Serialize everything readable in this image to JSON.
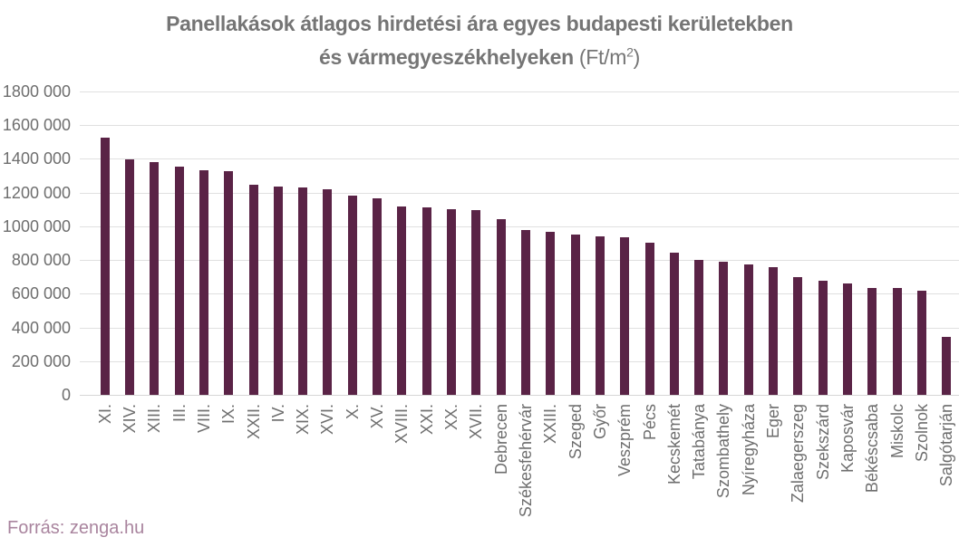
{
  "title": {
    "line1": "Panellakások átlagos hirdetési ára egyes budapesti kerületekben",
    "line2_bold": "és vármegyeszékhelyeken",
    "unit_prefix": " (Ft/m",
    "unit_sup": "2",
    "unit_suffix": ")"
  },
  "source": {
    "text": "Forrás: zenga.hu"
  },
  "colors": {
    "bar": "#5a2346",
    "gridline": "#e0e0e0",
    "zero_line": "#d6d6d6",
    "axis_label": "#6e6e6e",
    "title": "#757575",
    "source": "#a9849e",
    "background": "#ffffff"
  },
  "chart_data": {
    "type": "bar",
    "title": "Panellakások átlagos hirdetési ára egyes budapesti kerületekben és vármegyeszékhelyeken (Ft/m2)",
    "xlabel": "",
    "ylabel": "",
    "ylim": [
      0,
      1800000
    ],
    "grid": true,
    "legend": false,
    "bar_color": "#5a2346",
    "y_ticks": [
      {
        "value": 1800000,
        "label": "1800 000"
      },
      {
        "value": 1600000,
        "label": "1600 000"
      },
      {
        "value": 1400000,
        "label": "1400 000"
      },
      {
        "value": 1200000,
        "label": "1200 000"
      },
      {
        "value": 1000000,
        "label": "1000 000"
      },
      {
        "value": 800000,
        "label": "800 000"
      },
      {
        "value": 600000,
        "label": "600 000"
      },
      {
        "value": 400000,
        "label": "400 000"
      },
      {
        "value": 200000,
        "label": "200 000"
      },
      {
        "value": 0,
        "label": "0"
      }
    ],
    "categories": [
      "XI.",
      "XIV.",
      "XIII.",
      "III.",
      "VIII.",
      "IX.",
      "XXII.",
      "IV.",
      "XIX.",
      "XVI.",
      "X.",
      "XV.",
      "XVIII.",
      "XXI.",
      "XX.",
      "XVII.",
      "Debrecen",
      "Székesfehérvár",
      "XXIII.",
      "Szeged",
      "Győr",
      "Veszprém",
      "Pécs",
      "Kecskemét",
      "Tatabánya",
      "Szombathely",
      "Nyíregyháza",
      "Eger",
      "Zalaegerszeg",
      "Szekszárd",
      "Kaposvár",
      "Békéscsaba",
      "Miskolc",
      "Szolnok",
      "Salgótarján"
    ],
    "values": [
      1525000,
      1395000,
      1380000,
      1355000,
      1335000,
      1325000,
      1245000,
      1235000,
      1230000,
      1220000,
      1180000,
      1165000,
      1120000,
      1110000,
      1100000,
      1095000,
      1040000,
      980000,
      965000,
      950000,
      940000,
      935000,
      905000,
      845000,
      800000,
      790000,
      775000,
      760000,
      700000,
      675000,
      660000,
      635000,
      635000,
      620000,
      345000
    ],
    "source": "Forrás: zenga.hu"
  }
}
